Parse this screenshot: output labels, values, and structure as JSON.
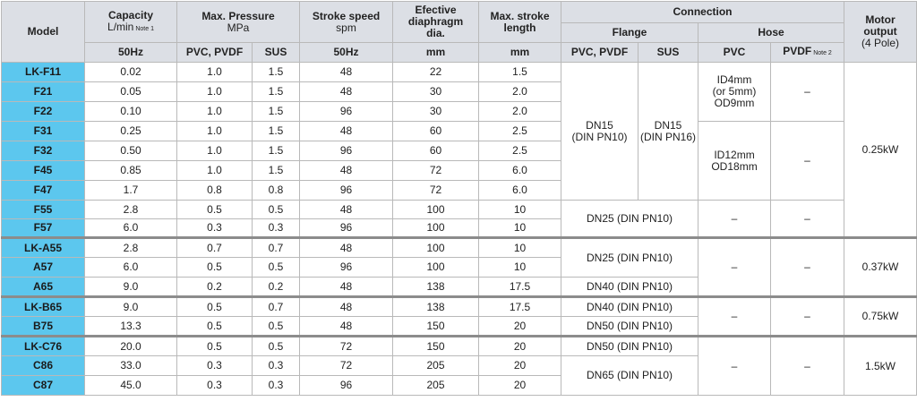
{
  "header": {
    "model": "Model",
    "capacity": "Capacity",
    "capacity_unit": "L/min",
    "note1": "Note 1",
    "pressure": "Max. Pressure",
    "pressure_unit": "MPa",
    "stroke_speed": "Stroke speed",
    "stroke_speed_unit": "spm",
    "diaphragm_1": "Efective",
    "diaphragm_2": "diaphragm",
    "diaphragm_3": "dia.",
    "stroke_length_1": "Max. stroke",
    "stroke_length_2": "length",
    "connection": "Connection",
    "flange": "Flange",
    "hose": "Hose",
    "motor_1": "Motor",
    "motor_2": "output",
    "motor_3": "(4 Pole)",
    "sub_50hz": "50Hz",
    "sub_pvc_pvdf": "PVC, PVDF",
    "sub_sus": "SUS",
    "sub_50hz_2": "50Hz",
    "sub_mm": "mm",
    "sub_mm_2": "mm",
    "sub_flange_pvc_pvdf": "PVC, PVDF",
    "sub_flange_sus": "SUS",
    "sub_hose_pvc": "PVC",
    "sub_hose_pvdf": "PVDF",
    "note2": "Note 2"
  },
  "rows": [
    {
      "model": "LK-F11",
      "capacity": "0.02",
      "p_pvc": "1.0",
      "p_sus": "1.5",
      "spm": "48",
      "dia": "22",
      "stroke": "1.5"
    },
    {
      "model": "F21",
      "capacity": "0.05",
      "p_pvc": "1.0",
      "p_sus": "1.5",
      "spm": "48",
      "dia": "30",
      "stroke": "2.0"
    },
    {
      "model": "F22",
      "capacity": "0.10",
      "p_pvc": "1.0",
      "p_sus": "1.5",
      "spm": "96",
      "dia": "30",
      "stroke": "2.0"
    },
    {
      "model": "F31",
      "capacity": "0.25",
      "p_pvc": "1.0",
      "p_sus": "1.5",
      "spm": "48",
      "dia": "60",
      "stroke": "2.5"
    },
    {
      "model": "F32",
      "capacity": "0.50",
      "p_pvc": "1.0",
      "p_sus": "1.5",
      "spm": "96",
      "dia": "60",
      "stroke": "2.5"
    },
    {
      "model": "F45",
      "capacity": "0.85",
      "p_pvc": "1.0",
      "p_sus": "1.5",
      "spm": "48",
      "dia": "72",
      "stroke": "6.0"
    },
    {
      "model": "F47",
      "capacity": "1.7",
      "p_pvc": "0.8",
      "p_sus": "0.8",
      "spm": "96",
      "dia": "72",
      "stroke": "6.0"
    },
    {
      "model": "F55",
      "capacity": "2.8",
      "p_pvc": "0.5",
      "p_sus": "0.5",
      "spm": "48",
      "dia": "100",
      "stroke": "10"
    },
    {
      "model": "F57",
      "capacity": "6.0",
      "p_pvc": "0.3",
      "p_sus": "0.3",
      "spm": "96",
      "dia": "100",
      "stroke": "10"
    },
    {
      "model": "LK-A55",
      "capacity": "2.8",
      "p_pvc": "0.7",
      "p_sus": "0.7",
      "spm": "48",
      "dia": "100",
      "stroke": "10"
    },
    {
      "model": "A57",
      "capacity": "6.0",
      "p_pvc": "0.5",
      "p_sus": "0.5",
      "spm": "96",
      "dia": "100",
      "stroke": "10"
    },
    {
      "model": "A65",
      "capacity": "9.0",
      "p_pvc": "0.2",
      "p_sus": "0.2",
      "spm": "48",
      "dia": "138",
      "stroke": "17.5"
    },
    {
      "model": "LK-B65",
      "capacity": "9.0",
      "p_pvc": "0.5",
      "p_sus": "0.7",
      "spm": "48",
      "dia": "138",
      "stroke": "17.5"
    },
    {
      "model": "B75",
      "capacity": "13.3",
      "p_pvc": "0.5",
      "p_sus": "0.5",
      "spm": "48",
      "dia": "150",
      "stroke": "20"
    },
    {
      "model": "LK-C76",
      "capacity": "20.0",
      "p_pvc": "0.5",
      "p_sus": "0.5",
      "spm": "72",
      "dia": "150",
      "stroke": "20"
    },
    {
      "model": "C86",
      "capacity": "33.0",
      "p_pvc": "0.3",
      "p_sus": "0.3",
      "spm": "72",
      "dia": "205",
      "stroke": "20"
    },
    {
      "model": "C87",
      "capacity": "45.0",
      "p_pvc": "0.3",
      "p_sus": "0.3",
      "spm": "96",
      "dia": "205",
      "stroke": "20"
    }
  ],
  "connection": {
    "f_group_pvc_1": "DN15",
    "f_group_pvc_2": "(DIN PN10)",
    "f_group_sus_1": "DN15",
    "f_group_sus_2": "(DIN PN16)",
    "hose_small_1": "ID4mm",
    "hose_small_2": "(or 5mm)",
    "hose_small_3": "OD9mm",
    "hose_large_1": "ID12mm",
    "hose_large_2": "OD18mm",
    "dash": "–",
    "dn25": "DN25 (DIN PN10)",
    "dn40": "DN40 (DIN PN10)",
    "dn50": "DN50 (DIN PN10)",
    "dn65": "DN65 (DIN PN10)"
  },
  "motor": {
    "f_group": "0.25kW",
    "a_group": "0.37kW",
    "b_group": "0.75kW",
    "c_group": "1.5kW"
  }
}
